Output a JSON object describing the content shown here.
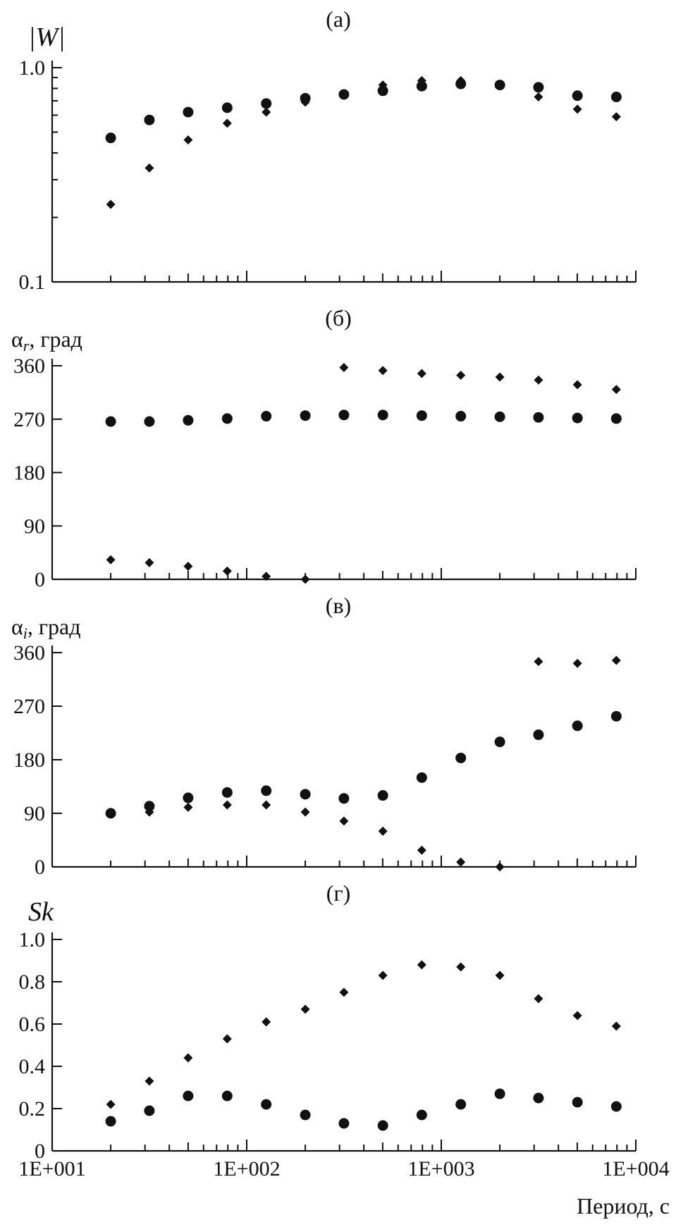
{
  "x_axis": {
    "label": "Период, с",
    "tick_labels": [
      "1E+001",
      "1E+002",
      "1E+003",
      "1E+004"
    ]
  },
  "chart_data": [
    {
      "type": "scatter",
      "title": "(а)",
      "ylabel": "|W|",
      "x_scale": "log",
      "y_scale": "log",
      "xlim": [
        10,
        10000
      ],
      "ylim": [
        0.1,
        1.0
      ],
      "y_ticks": [
        "1.0",
        "0.1"
      ],
      "x": [
        20,
        31.6,
        50,
        79.4,
        126,
        200,
        316,
        501,
        794,
        1260,
        2000,
        3160,
        5010,
        7940
      ],
      "series": [
        {
          "marker": "circle",
          "values": [
            0.47,
            0.57,
            0.62,
            0.65,
            0.68,
            0.72,
            0.75,
            0.78,
            0.82,
            0.84,
            0.83,
            0.81,
            0.74,
            0.73
          ]
        },
        {
          "marker": "diamond",
          "values": [
            0.23,
            0.34,
            0.46,
            0.55,
            0.62,
            0.69,
            0.75,
            0.83,
            0.87,
            0.87,
            0.83,
            0.73,
            0.64,
            0.59
          ]
        }
      ]
    },
    {
      "type": "scatter",
      "title": "(б)",
      "ylabel_symbol": "α",
      "ylabel_sub": "r",
      "ylabel_unit": ", град",
      "x_scale": "log",
      "xlim": [
        10,
        10000
      ],
      "ylim": [
        0,
        360
      ],
      "y_ticks": [
        "0",
        "90",
        "180",
        "270",
        "360"
      ],
      "x": [
        20,
        31.6,
        50,
        79.4,
        126,
        200,
        316,
        501,
        794,
        1260,
        2000,
        3160,
        5010,
        7940
      ],
      "series": [
        {
          "marker": "circle",
          "values": [
            266,
            266,
            268,
            271,
            275,
            276,
            277,
            277,
            276,
            275,
            274,
            273,
            272,
            271
          ]
        },
        {
          "marker": "diamond",
          "values": [
            33,
            28,
            22,
            14,
            5,
            0,
            357,
            352,
            347,
            344,
            341,
            336,
            328,
            320
          ]
        }
      ]
    },
    {
      "type": "scatter",
      "title": "(в)",
      "ylabel_symbol": "α",
      "ylabel_sub": "i",
      "ylabel_unit": ", град",
      "x_scale": "log",
      "xlim": [
        10,
        10000
      ],
      "ylim": [
        0,
        360
      ],
      "y_ticks": [
        "0",
        "90",
        "180",
        "270",
        "360"
      ],
      "x": [
        20,
        31.6,
        50,
        79.4,
        126,
        200,
        316,
        501,
        794,
        1260,
        2000,
        3160,
        5010,
        7940
      ],
      "series": [
        {
          "marker": "circle",
          "values": [
            90,
            102,
            116,
            125,
            128,
            122,
            115,
            120,
            150,
            183,
            210,
            222,
            237,
            253
          ]
        },
        {
          "marker": "diamond",
          "values": [
            90,
            92,
            100,
            104,
            104,
            92,
            77,
            60,
            28,
            8,
            0,
            345,
            342,
            347
          ]
        }
      ]
    },
    {
      "type": "scatter",
      "title": "(г)",
      "ylabel": "Sk",
      "x_scale": "log",
      "xlim": [
        10,
        10000
      ],
      "ylim": [
        0,
        1.0
      ],
      "y_ticks": [
        "0",
        "0.2",
        "0.4",
        "0.6",
        "0.8",
        "1.0"
      ],
      "x": [
        20,
        31.6,
        50,
        79.4,
        126,
        200,
        316,
        501,
        794,
        1260,
        2000,
        3160,
        5010,
        7940
      ],
      "series": [
        {
          "marker": "circle",
          "values": [
            0.14,
            0.19,
            0.26,
            0.26,
            0.22,
            0.17,
            0.13,
            0.12,
            0.17,
            0.22,
            0.27,
            0.25,
            0.23,
            0.21
          ]
        },
        {
          "marker": "diamond",
          "values": [
            0.22,
            0.33,
            0.44,
            0.53,
            0.61,
            0.67,
            0.75,
            0.83,
            0.88,
            0.87,
            0.83,
            0.72,
            0.64,
            0.59
          ]
        }
      ]
    }
  ]
}
